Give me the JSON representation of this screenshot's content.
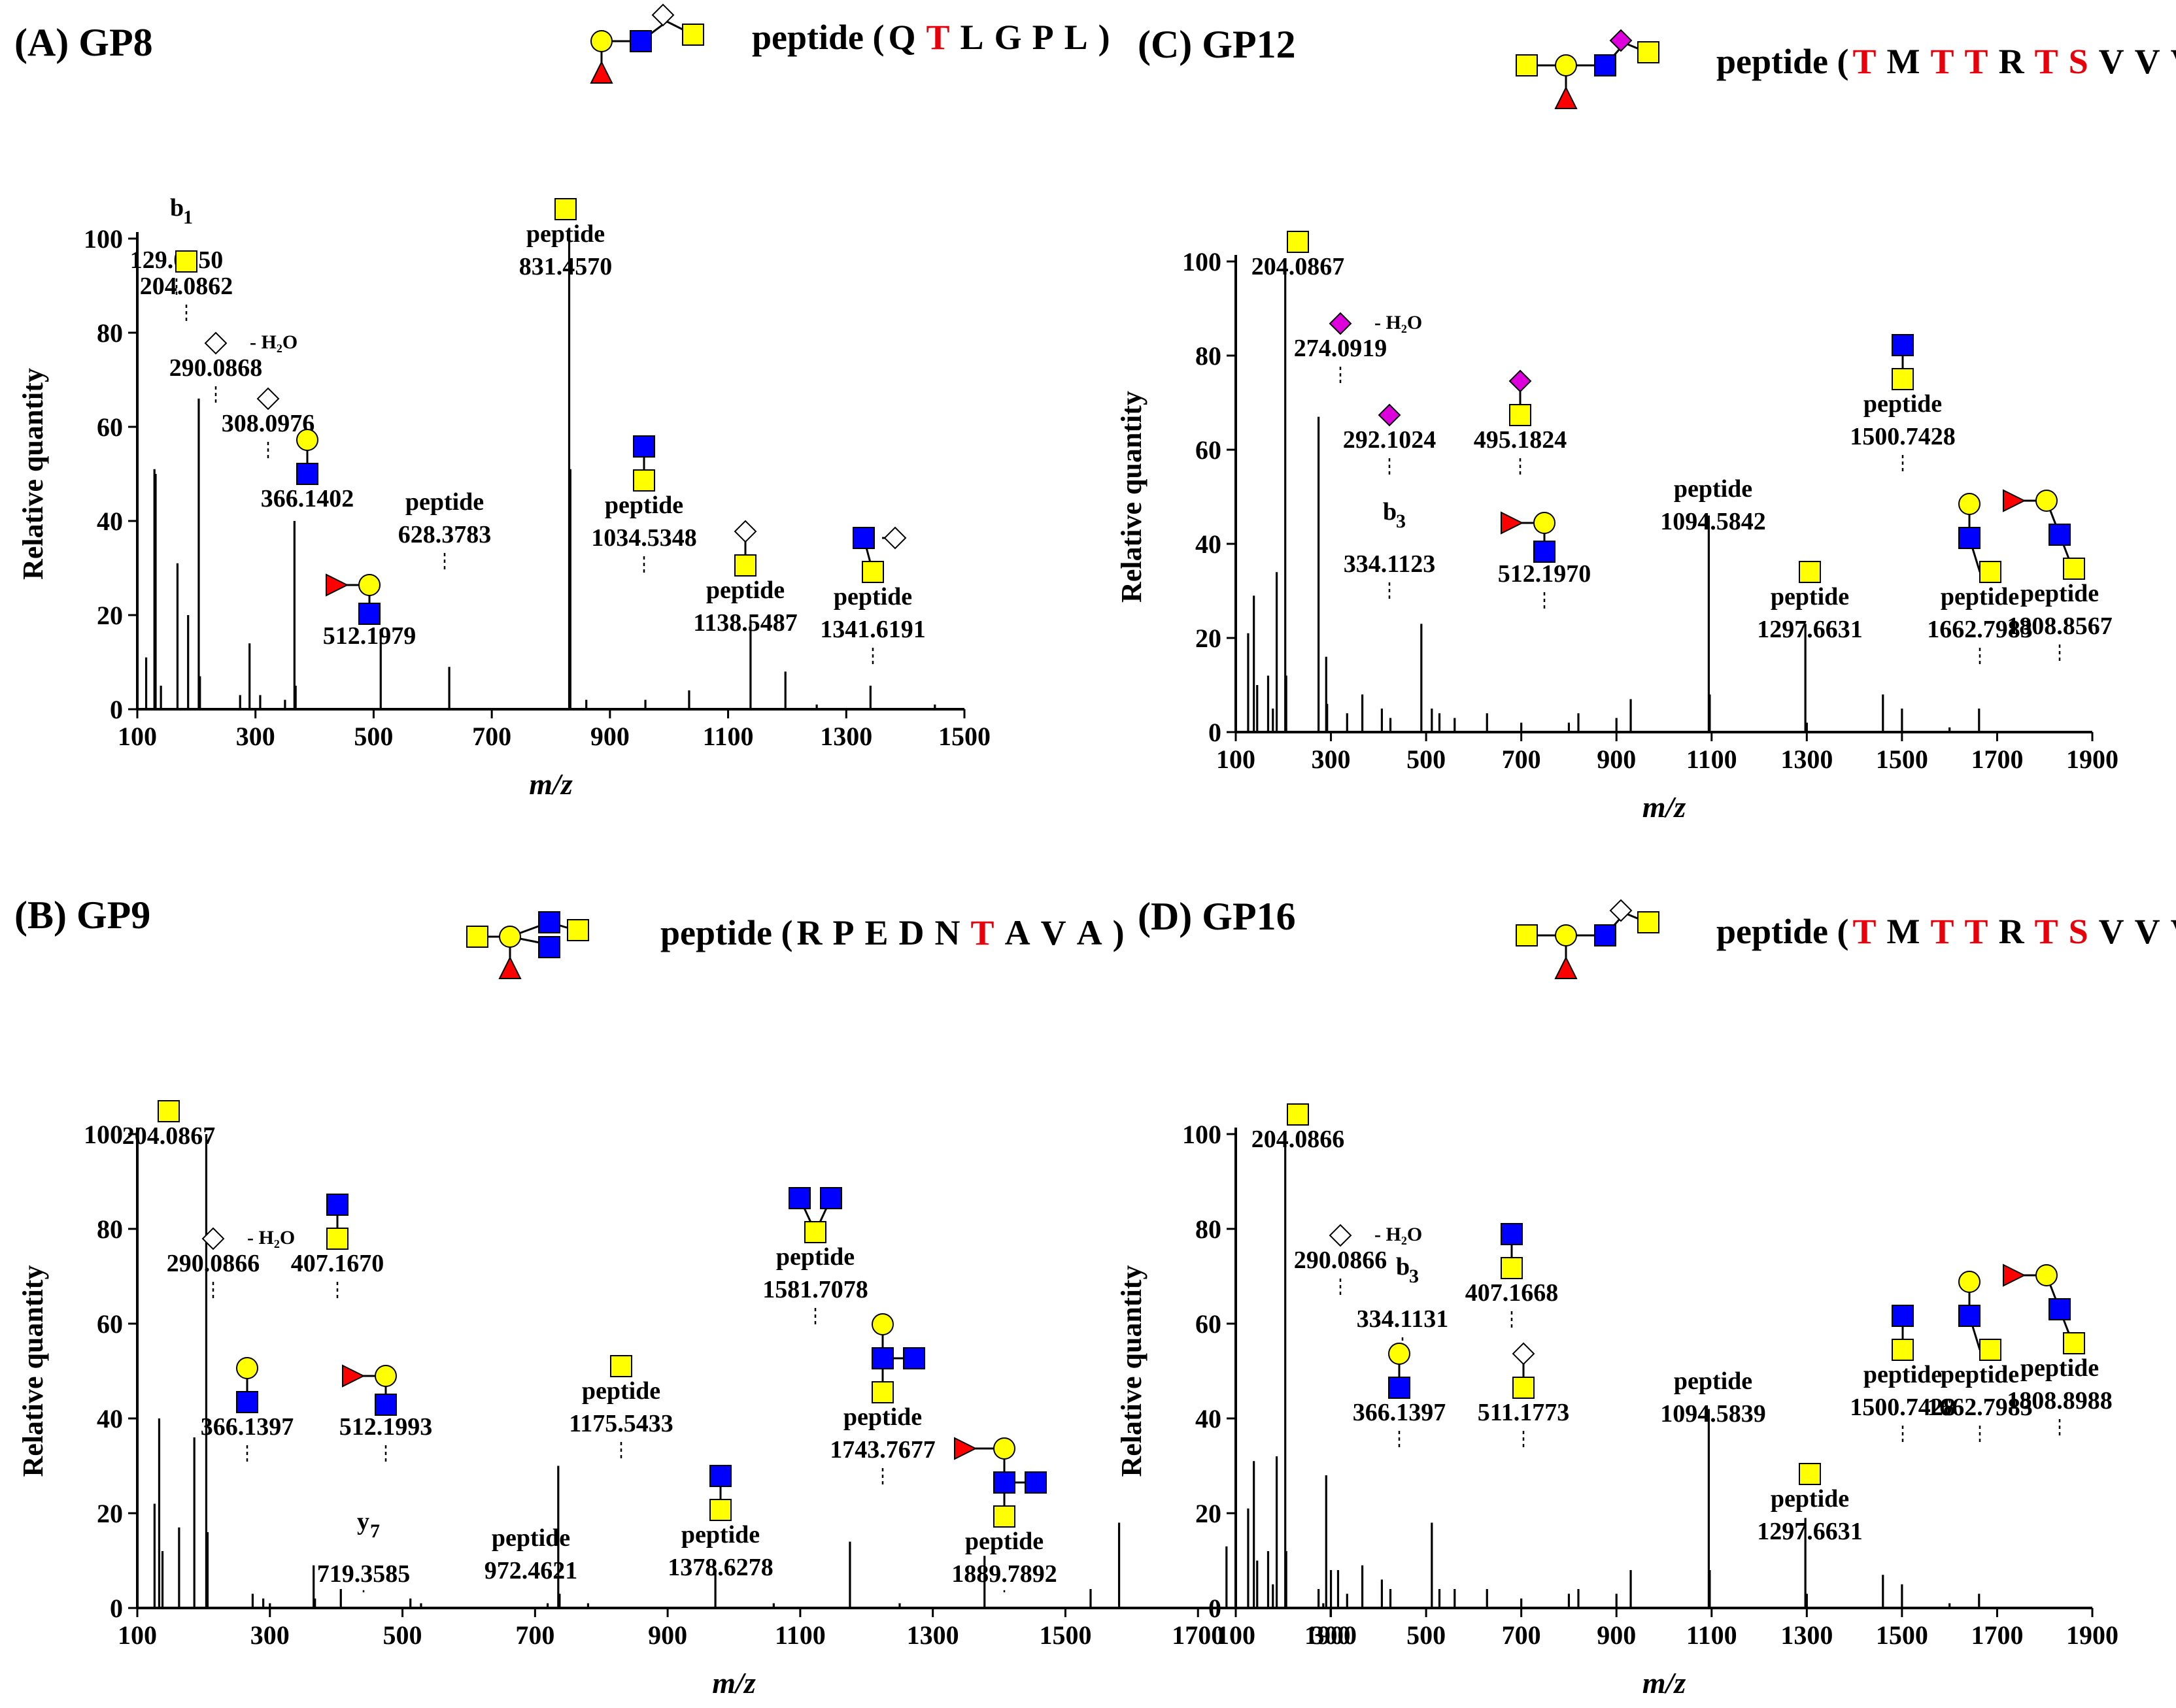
{
  "colors": {
    "red": "#e8000b",
    "blue": "#0000ff",
    "yellow": "#ffff00",
    "magenta": "#dd00dd",
    "fucose": "#ff0000",
    "white": "#ffffff"
  },
  "chart_data": [
    {
      "id": "A",
      "type": "bar",
      "title": "(A) GP8",
      "xlabel": "m/z",
      "ylabel": "Relative quantity",
      "xlim": [
        100,
        1500
      ],
      "ylim": [
        0,
        100
      ],
      "xticks": [
        "100",
        "300",
        "500",
        "700",
        "900",
        "1100",
        "1300",
        "1500"
      ],
      "yticks": [
        "0",
        "20",
        "40",
        "60",
        "80",
        "100"
      ],
      "sequence": {
        "prefix": "peptide (",
        "residues": [
          "Q",
          "T",
          "L",
          "G",
          "P",
          "L"
        ],
        "red": [
          1
        ],
        "suffix": ")",
        "cleavage_label": "b",
        "cleavage_sub": "1"
      },
      "bars": [
        [
          115,
          11
        ],
        [
          129,
          51
        ],
        [
          131,
          50
        ],
        [
          140,
          5
        ],
        [
          168,
          31
        ],
        [
          186,
          20
        ],
        [
          204,
          66
        ],
        [
          206,
          7
        ],
        [
          274,
          3
        ],
        [
          290,
          14
        ],
        [
          308,
          3
        ],
        [
          350,
          2
        ],
        [
          366,
          40
        ],
        [
          368,
          5
        ],
        [
          512,
          17
        ],
        [
          628,
          9
        ],
        [
          831,
          100
        ],
        [
          833,
          51
        ],
        [
          860,
          2
        ],
        [
          960,
          2
        ],
        [
          1034,
          4
        ],
        [
          1138,
          19
        ],
        [
          1197,
          8
        ],
        [
          1341,
          5
        ],
        [
          1250,
          1
        ],
        [
          1450,
          1
        ]
      ],
      "labels": [
        {
          "peak": 129,
          "text": "129.0550",
          "ion": "b",
          "ion_sub": "1"
        },
        {
          "peak": 204,
          "text": "204.0862"
        },
        {
          "peak": 290,
          "text": "290.0868",
          "h2o": "- H₂O"
        },
        {
          "peak": 308,
          "text": "308.0976"
        },
        {
          "peak": 366,
          "text": "366.1402"
        },
        {
          "peak": 512,
          "text": "512.1979"
        },
        {
          "peak": 628,
          "text": "628.3783",
          "name": "peptide"
        },
        {
          "peak": 831,
          "text": "831.4570",
          "name": "peptide"
        },
        {
          "peak": 1034,
          "text": "1034.5348",
          "name": "peptide"
        },
        {
          "peak": 1138,
          "text": "1138.5487",
          "name": "peptide"
        },
        {
          "peak": 1341,
          "text": "1341.6191",
          "name": "peptide"
        }
      ]
    },
    {
      "id": "B",
      "type": "bar",
      "title": "(B) GP9",
      "xlabel": "m/z",
      "ylabel": "Relative quantity",
      "xlim": [
        100,
        1900
      ],
      "ylim": [
        0,
        100
      ],
      "xticks": [
        "100",
        "300",
        "500",
        "700",
        "900",
        "1100",
        "1300",
        "1500",
        "1700",
        "1900"
      ],
      "yticks": [
        "0",
        "20",
        "40",
        "60",
        "80",
        "100"
      ],
      "sequence": {
        "prefix": "peptide (",
        "residues": [
          "R",
          "P",
          "E",
          "D",
          "N",
          "T",
          "A",
          "V",
          "A"
        ],
        "red": [
          5
        ],
        "suffix": ")",
        "cleavage_label": "y",
        "cleavage_sub": "7"
      },
      "bars": [
        [
          126,
          22
        ],
        [
          133,
          40
        ],
        [
          138,
          12
        ],
        [
          163,
          17
        ],
        [
          186,
          36
        ],
        [
          204,
          100
        ],
        [
          206,
          16
        ],
        [
          274,
          3
        ],
        [
          290,
          2
        ],
        [
          300,
          1
        ],
        [
          366,
          9
        ],
        [
          368,
          2
        ],
        [
          407,
          4
        ],
        [
          512,
          2
        ],
        [
          528,
          1
        ],
        [
          719,
          1
        ],
        [
          735,
          30
        ],
        [
          737,
          3
        ],
        [
          780,
          1
        ],
        [
          972,
          8
        ],
        [
          1060,
          1
        ],
        [
          1175,
          14
        ],
        [
          1250,
          1
        ],
        [
          1378,
          11
        ],
        [
          1538,
          4
        ],
        [
          1581,
          18
        ],
        [
          1743,
          13
        ],
        [
          1889,
          1
        ]
      ],
      "labels": [
        {
          "peak": 204,
          "text": "204.0867"
        },
        {
          "peak": 290,
          "text": "290.0866",
          "h2o": "- H₂O"
        },
        {
          "peak": 366,
          "text": "366.1397"
        },
        {
          "peak": 407,
          "text": "407.1670"
        },
        {
          "peak": 512,
          "text": "512.1993"
        },
        {
          "peak": 719,
          "text": "719.3585",
          "ion": "y",
          "ion_sub": "7"
        },
        {
          "peak": 972,
          "text": "972.4621",
          "name": "peptide"
        },
        {
          "peak": 1175,
          "text": "1175.5433",
          "name": "peptide"
        },
        {
          "peak": 1378,
          "text": "1378.6278",
          "name": "peptide"
        },
        {
          "peak": 1581,
          "text": "1581.7078",
          "name": "peptide"
        },
        {
          "peak": 1743,
          "text": "1743.7677",
          "name": "peptide"
        },
        {
          "peak": 1889,
          "text": "1889.7892",
          "name": "peptide"
        }
      ]
    },
    {
      "id": "C",
      "type": "bar",
      "title": "(C) GP12",
      "xlabel": "m/z",
      "ylabel": "Relative quantity",
      "xlim": [
        100,
        1900
      ],
      "ylim": [
        0,
        100
      ],
      "xticks": [
        "100",
        "300",
        "500",
        "700",
        "900",
        "1100",
        "1300",
        "1500",
        "1700",
        "1900"
      ],
      "yticks": [
        "0",
        "20",
        "40",
        "60",
        "80",
        "100"
      ],
      "sequence": {
        "prefix": "peptide (",
        "residues": [
          "T",
          "M",
          "T",
          "T",
          "R",
          "T",
          "S",
          "V",
          "V",
          "V"
        ],
        "red": [
          0,
          2,
          3,
          5,
          6
        ],
        "suffix": ")",
        "cleavage_label": "b",
        "cleavage_sub": "3"
      },
      "bars": [
        [
          126,
          21
        ],
        [
          138,
          29
        ],
        [
          145,
          10
        ],
        [
          168,
          12
        ],
        [
          178,
          5
        ],
        [
          186,
          34
        ],
        [
          204,
          100
        ],
        [
          206,
          12
        ],
        [
          274,
          67
        ],
        [
          290,
          16
        ],
        [
          292,
          6
        ],
        [
          334,
          4
        ],
        [
          366,
          8
        ],
        [
          407,
          5
        ],
        [
          425,
          3
        ],
        [
          490,
          23
        ],
        [
          512,
          5
        ],
        [
          528,
          4
        ],
        [
          560,
          3
        ],
        [
          628,
          4
        ],
        [
          700,
          2
        ],
        [
          800,
          2
        ],
        [
          820,
          4
        ],
        [
          900,
          3
        ],
        [
          930,
          7
        ],
        [
          1094,
          46
        ],
        [
          1096,
          8
        ],
        [
          1297,
          23
        ],
        [
          1300,
          2
        ],
        [
          1460,
          8
        ],
        [
          1500,
          5
        ],
        [
          1600,
          1
        ],
        [
          1662,
          5
        ]
      ],
      "labels": [
        {
          "peak": 204,
          "text": "204.0867"
        },
        {
          "peak": 274,
          "text": "274.0919",
          "h2o": "- H₂O"
        },
        {
          "peak": 292,
          "text": "292.1024"
        },
        {
          "peak": 334,
          "text": "334.1123",
          "ion": "b",
          "ion_sub": "3"
        },
        {
          "peak": 495,
          "text": "495.1824"
        },
        {
          "peak": 512,
          "text": "512.1970"
        },
        {
          "peak": 1094,
          "text": "1094.5842",
          "name": "peptide"
        },
        {
          "peak": 1297,
          "text": "1297.6631",
          "name": "peptide"
        },
        {
          "peak": 1500,
          "text": "1500.7428",
          "name": "peptide"
        },
        {
          "peak": 1662,
          "text": "1662.7983",
          "name": "peptide"
        },
        {
          "peak": 1808,
          "text": "1808.8567",
          "name": "peptide"
        }
      ]
    },
    {
      "id": "D",
      "type": "bar",
      "title": "(D) GP16",
      "xlabel": "m/z",
      "ylabel": "Relative quantity",
      "xlim": [
        100,
        1900
      ],
      "ylim": [
        0,
        100
      ],
      "xticks": [
        "100",
        "300",
        "500",
        "700",
        "900",
        "1100",
        "1300",
        "1500",
        "1700",
        "1900"
      ],
      "yticks": [
        "0",
        "20",
        "40",
        "60",
        "80",
        "100"
      ],
      "sequence": {
        "prefix": "peptide (",
        "residues": [
          "T",
          "M",
          "T",
          "T",
          "R",
          "T",
          "S",
          "V",
          "V",
          "V"
        ],
        "red": [
          0,
          2,
          3,
          5,
          6
        ],
        "suffix": ")",
        "cleavage_label": "b",
        "cleavage_sub": "3"
      },
      "bars": [
        [
          126,
          21
        ],
        [
          138,
          31
        ],
        [
          145,
          10
        ],
        [
          168,
          12
        ],
        [
          178,
          5
        ],
        [
          186,
          32
        ],
        [
          204,
          100
        ],
        [
          206,
          12
        ],
        [
          274,
          4
        ],
        [
          290,
          28
        ],
        [
          300,
          8
        ],
        [
          315,
          8
        ],
        [
          334,
          3
        ],
        [
          366,
          9
        ],
        [
          407,
          6
        ],
        [
          425,
          4
        ],
        [
          512,
          18
        ],
        [
          528,
          4
        ],
        [
          560,
          4
        ],
        [
          628,
          4
        ],
        [
          700,
          2
        ],
        [
          800,
          3
        ],
        [
          820,
          4
        ],
        [
          900,
          3
        ],
        [
          930,
          8
        ],
        [
          1094,
          42
        ],
        [
          1096,
          8
        ],
        [
          1297,
          19
        ],
        [
          1300,
          3
        ],
        [
          1460,
          7
        ],
        [
          1500,
          5
        ],
        [
          1600,
          1
        ],
        [
          1662,
          3
        ]
      ],
      "labels": [
        {
          "peak": 204,
          "text": "204.0866"
        },
        {
          "peak": 290,
          "text": "290.0866",
          "h2o": "- H₂O"
        },
        {
          "peak": 334,
          "text": "334.1131",
          "ion": "b",
          "ion_sub": "3"
        },
        {
          "peak": 366,
          "text": "366.1397"
        },
        {
          "peak": 407,
          "text": "407.1668"
        },
        {
          "peak": 511,
          "text": "511.1773"
        },
        {
          "peak": 1094,
          "text": "1094.5839",
          "name": "peptide"
        },
        {
          "peak": 1297,
          "text": "1297.6631",
          "name": "peptide"
        },
        {
          "peak": 1500,
          "text": "1500.7428",
          "name": "peptide"
        },
        {
          "peak": 1662,
          "text": "1662.7983",
          "name": "peptide"
        },
        {
          "peak": 1808,
          "text": "1808.8988",
          "name": "peptide"
        }
      ]
    }
  ]
}
